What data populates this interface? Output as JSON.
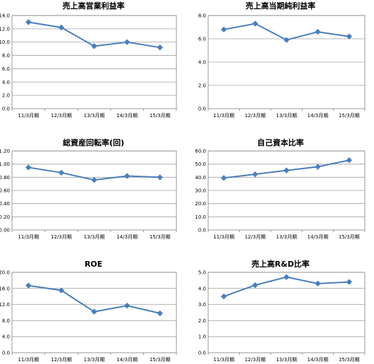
{
  "chart_data": [
    {
      "type": "line",
      "title": "売上高営業利益率",
      "categories": [
        "11/3月期",
        "12/3月期",
        "13/3月期",
        "14/3月期",
        "15/3月期"
      ],
      "series": [
        {
          "values": [
            13.0,
            12.2,
            9.4,
            10.0,
            9.2
          ]
        }
      ],
      "ylim": [
        0,
        14
      ],
      "yticks": [
        "0.0",
        "2.0",
        "4.0",
        "6.0",
        "8.0",
        "10.0",
        "12.0",
        "14.0"
      ],
      "grid": true
    },
    {
      "type": "line",
      "title": "売上高当期純利益率",
      "categories": [
        "11/3月期",
        "12/3月期",
        "13/3月期",
        "14/3月期",
        "15/3月期"
      ],
      "series": [
        {
          "values": [
            6.8,
            7.3,
            5.9,
            6.6,
            6.2
          ]
        }
      ],
      "ylim": [
        0,
        8
      ],
      "yticks": [
        "0.0",
        "2.0",
        "4.0",
        "6.0",
        "8.0"
      ],
      "grid": true
    },
    {
      "type": "line",
      "title": "総資産回転率(回)",
      "categories": [
        "11/3月期",
        "12/3月期",
        "13/3月期",
        "14/3月期",
        "15/3月期"
      ],
      "series": [
        {
          "values": [
            0.95,
            0.87,
            0.76,
            0.82,
            0.8
          ]
        }
      ],
      "ylim": [
        0,
        1.2
      ],
      "yticks": [
        "0.00",
        "0.20",
        "0.40",
        "0.60",
        "0.80",
        "1.00",
        "1.20"
      ],
      "grid": true
    },
    {
      "type": "line",
      "title": "自己資本比率",
      "categories": [
        "11/3月期",
        "12/3月期",
        "13/3月期",
        "14/3月期",
        "15/3月期"
      ],
      "series": [
        {
          "values": [
            39.5,
            42.3,
            45.2,
            48.0,
            53.0
          ]
        }
      ],
      "ylim": [
        0,
        60
      ],
      "yticks": [
        "0.0",
        "10.0",
        "20.0",
        "30.0",
        "40.0",
        "50.0",
        "60.0"
      ],
      "grid": true
    },
    {
      "type": "line",
      "title": "ROE",
      "categories": [
        "11/3月期",
        "12/3月期",
        "13/3月期",
        "14/3月期",
        "15/3月期"
      ],
      "series": [
        {
          "values": [
            16.7,
            15.5,
            10.2,
            11.7,
            9.8
          ]
        }
      ],
      "ylim": [
        0,
        20
      ],
      "yticks": [
        "0.0",
        "4.0",
        "8.0",
        "12.0",
        "16.0",
        "20.0"
      ],
      "grid": true
    },
    {
      "type": "line",
      "title": "売上高R&D比率",
      "categories": [
        "11/3月期",
        "12/3月期",
        "13/3月期",
        "14/3月期",
        "15/3月期"
      ],
      "series": [
        {
          "values": [
            3.5,
            4.2,
            4.7,
            4.3,
            4.4
          ]
        }
      ],
      "ylim": [
        0,
        5
      ],
      "yticks": [
        "0.0",
        "1.0",
        "2.0",
        "3.0",
        "4.0",
        "5.0"
      ],
      "grid": true
    }
  ],
  "colors": {
    "line": "#4a7ebb",
    "marker": "#4a7ebb",
    "grid": "#a0a0a0",
    "axis": "#808080"
  }
}
